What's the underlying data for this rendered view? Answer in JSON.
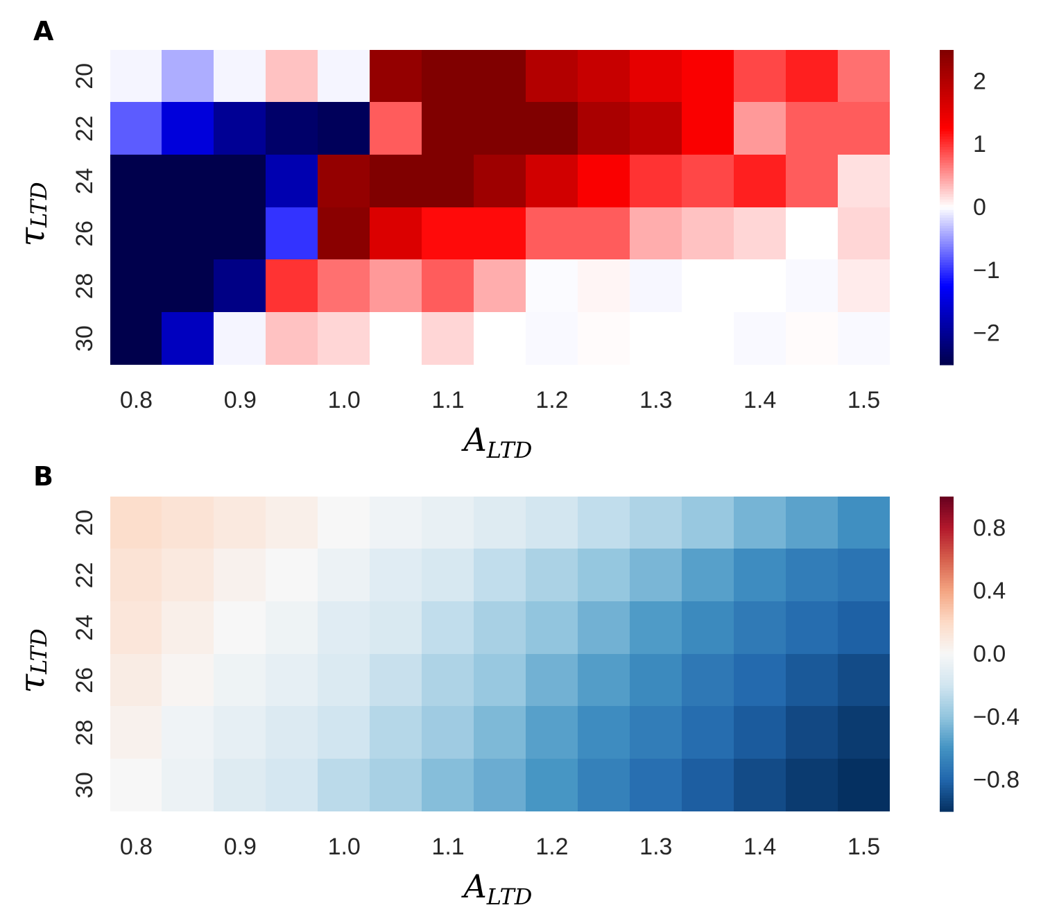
{
  "chart_data": [
    {
      "type": "heatmap",
      "panel_label": "A",
      "xlabel": {
        "main": "A",
        "sub": "LTD"
      },
      "ylabel": {
        "main": "τ",
        "sub": "LTD"
      },
      "x_values": [
        0.8,
        0.85,
        0.9,
        0.95,
        1.0,
        1.05,
        1.1,
        1.15,
        1.2,
        1.25,
        1.3,
        1.35,
        1.4,
        1.45,
        1.5
      ],
      "x_tick_labels": [
        "0.8",
        "0.9",
        "1.0",
        "1.1",
        "1.2",
        "1.3",
        "1.4",
        "1.5"
      ],
      "y_tick_labels": [
        "20",
        "22",
        "24",
        "26",
        "28",
        "30"
      ],
      "colormap": "seismic",
      "vmin": -2.5,
      "vmax": 2.5,
      "colorbar_ticks": [
        "2",
        "1",
        "0",
        "−1",
        "−2"
      ],
      "colorbar_tick_values": [
        2,
        1,
        0,
        -1,
        -2
      ],
      "values": [
        [
          -0.05,
          -0.4,
          -0.05,
          0.3,
          -0.05,
          2.3,
          2.5,
          2.5,
          2.0,
          1.8,
          1.5,
          1.3,
          0.9,
          1.1,
          0.7
        ],
        [
          -0.8,
          -1.5,
          -2.0,
          -2.3,
          -2.4,
          0.8,
          2.5,
          2.5,
          2.5,
          2.1,
          1.9,
          1.3,
          0.5,
          0.8,
          0.8
        ],
        [
          -2.5,
          -2.5,
          -2.5,
          -1.8,
          2.3,
          2.5,
          2.5,
          2.2,
          1.7,
          1.3,
          1.0,
          0.9,
          1.1,
          0.8,
          0.15
        ],
        [
          -2.5,
          -2.5,
          -2.5,
          -1.0,
          2.4,
          1.6,
          1.2,
          1.2,
          0.8,
          0.8,
          0.4,
          0.3,
          0.2,
          0.0,
          0.2
        ],
        [
          -2.5,
          -2.5,
          -2.1,
          1.0,
          0.7,
          0.5,
          0.8,
          0.4,
          -0.02,
          0.05,
          -0.04,
          0.0,
          0.0,
          -0.03,
          0.1
        ],
        [
          -2.5,
          -1.7,
          -0.05,
          0.3,
          0.2,
          0.0,
          0.2,
          0.0,
          -0.03,
          0.02,
          0.0,
          0.0,
          -0.03,
          0.02,
          -0.03
        ]
      ]
    },
    {
      "type": "heatmap",
      "panel_label": "B",
      "xlabel": {
        "main": "A",
        "sub": "LTD"
      },
      "ylabel": {
        "main": "τ",
        "sub": "LTD"
      },
      "x_values": [
        0.8,
        0.85,
        0.9,
        0.95,
        1.0,
        1.05,
        1.1,
        1.15,
        1.2,
        1.25,
        1.3,
        1.35,
        1.4,
        1.45,
        1.5
      ],
      "x_tick_labels": [
        "0.8",
        "0.9",
        "1.0",
        "1.1",
        "1.2",
        "1.3",
        "1.4",
        "1.5"
      ],
      "y_tick_labels": [
        "20",
        "22",
        "24",
        "26",
        "28",
        "30"
      ],
      "colormap": "RdBu_r",
      "vmin": -1.0,
      "vmax": 1.0,
      "colorbar_ticks": [
        "0.8",
        "0.4",
        "0.0",
        "−0.4",
        "−0.8"
      ],
      "colorbar_tick_values": [
        0.8,
        0.4,
        0.0,
        -0.4,
        -0.8
      ],
      "values": [
        [
          0.18,
          0.14,
          0.1,
          0.06,
          0.0,
          -0.04,
          -0.08,
          -0.13,
          -0.19,
          -0.25,
          -0.31,
          -0.38,
          -0.47,
          -0.54,
          -0.62
        ],
        [
          0.14,
          0.1,
          0.04,
          0.0,
          -0.06,
          -0.12,
          -0.17,
          -0.25,
          -0.32,
          -0.39,
          -0.46,
          -0.55,
          -0.63,
          -0.7,
          -0.74
        ],
        [
          0.12,
          0.06,
          0.0,
          -0.05,
          -0.12,
          -0.16,
          -0.25,
          -0.33,
          -0.4,
          -0.48,
          -0.57,
          -0.64,
          -0.71,
          -0.77,
          -0.82
        ],
        [
          0.08,
          0.02,
          -0.05,
          -0.09,
          -0.15,
          -0.23,
          -0.31,
          -0.38,
          -0.48,
          -0.56,
          -0.64,
          -0.72,
          -0.78,
          -0.85,
          -0.9
        ],
        [
          0.04,
          -0.04,
          -0.09,
          -0.14,
          -0.2,
          -0.29,
          -0.36,
          -0.45,
          -0.55,
          -0.63,
          -0.7,
          -0.77,
          -0.84,
          -0.91,
          -0.96
        ],
        [
          0.0,
          -0.06,
          -0.13,
          -0.18,
          -0.27,
          -0.33,
          -0.43,
          -0.5,
          -0.59,
          -0.68,
          -0.76,
          -0.83,
          -0.9,
          -0.96,
          -1.0
        ]
      ]
    }
  ]
}
